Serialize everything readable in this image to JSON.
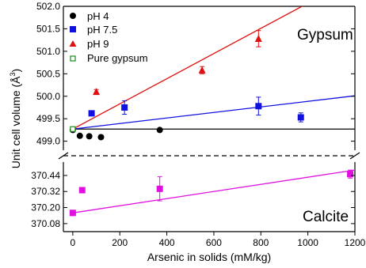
{
  "chart_data": [
    {
      "type": "scatter",
      "panel": "top",
      "annotation": "Gypsum",
      "xlim": [
        -40,
        1200
      ],
      "ylim": [
        498.8,
        502.0
      ],
      "yticks": [
        499.0,
        499.5,
        500.0,
        500.5,
        501.0,
        501.5,
        502.0
      ],
      "ytick_labels": [
        "499.0",
        "499.5",
        "500.0",
        "500.5",
        "501.0",
        "501.5",
        "502.0"
      ],
      "legend_position": "top-left",
      "series": [
        {
          "name": "pH 4",
          "marker": "circle",
          "color": "#000000",
          "x": [
            0,
            30,
            70,
            120,
            370
          ],
          "y": [
            499.25,
            499.12,
            499.11,
            499.09,
            499.25
          ],
          "err": [
            0.03,
            0.03,
            0.03,
            0.03,
            0.03
          ]
        },
        {
          "name": "pH 7.5",
          "marker": "square",
          "color": "#1010e0",
          "x": [
            80,
            220,
            790,
            970
          ],
          "y": [
            499.62,
            499.75,
            499.78,
            499.53
          ],
          "err": [
            0.02,
            0.15,
            0.2,
            0.1
          ]
        },
        {
          "name": "pH 9",
          "marker": "triangle",
          "color": "#e01010",
          "x": [
            100,
            550,
            790
          ],
          "y": [
            500.1,
            500.58,
            501.28
          ],
          "err": [
            0.05,
            0.08,
            0.18
          ]
        },
        {
          "name": "Pure gypsum",
          "marker": "open-square",
          "color": "#1a8a1a",
          "x": [
            0
          ],
          "y": [
            499.27
          ],
          "err": [
            0
          ]
        }
      ],
      "fit_lines": [
        {
          "color": "#000000",
          "x": [
            0,
            1200
          ],
          "y": [
            499.27,
            499.27
          ]
        },
        {
          "color": "#1010e0",
          "x": [
            0,
            1200
          ],
          "y": [
            499.27,
            500.01
          ]
        },
        {
          "color": "#e01010",
          "x": [
            0,
            1200
          ],
          "y": [
            499.27,
            502.63
          ]
        }
      ]
    },
    {
      "type": "scatter",
      "panel": "bottom",
      "annotation": "Calcite",
      "xlim": [
        -40,
        1200
      ],
      "ylim": [
        370.02,
        370.54
      ],
      "yticks": [
        370.08,
        370.2,
        370.32,
        370.44
      ],
      "ytick_labels": [
        "370.08",
        "370.20",
        "370.32",
        "370.44"
      ],
      "xticks": [
        0,
        200,
        400,
        600,
        800,
        1000,
        1200
      ],
      "xtick_labels": [
        "0",
        "200",
        "400",
        "600",
        "800",
        "1000",
        "1200"
      ],
      "xlabel": "Arsenic in solids (mM/kg)",
      "series": [
        {
          "name": "Calcite",
          "marker": "square",
          "color": "#e010e0",
          "x": [
            0,
            40,
            370,
            1180
          ],
          "y": [
            370.16,
            370.33,
            370.34,
            370.45
          ],
          "err": [
            0.02,
            0.02,
            0.09,
            0.03
          ]
        }
      ],
      "fit_lines": [
        {
          "color": "#e010e0",
          "x": [
            0,
            1200
          ],
          "y": [
            370.16,
            370.48
          ]
        }
      ]
    }
  ],
  "ylabel": "Unit cell volume (Å³)",
  "ylabel_main": "Unit cell volume (Å",
  "ylabel_sup": "3",
  "ylabel_end": ")"
}
